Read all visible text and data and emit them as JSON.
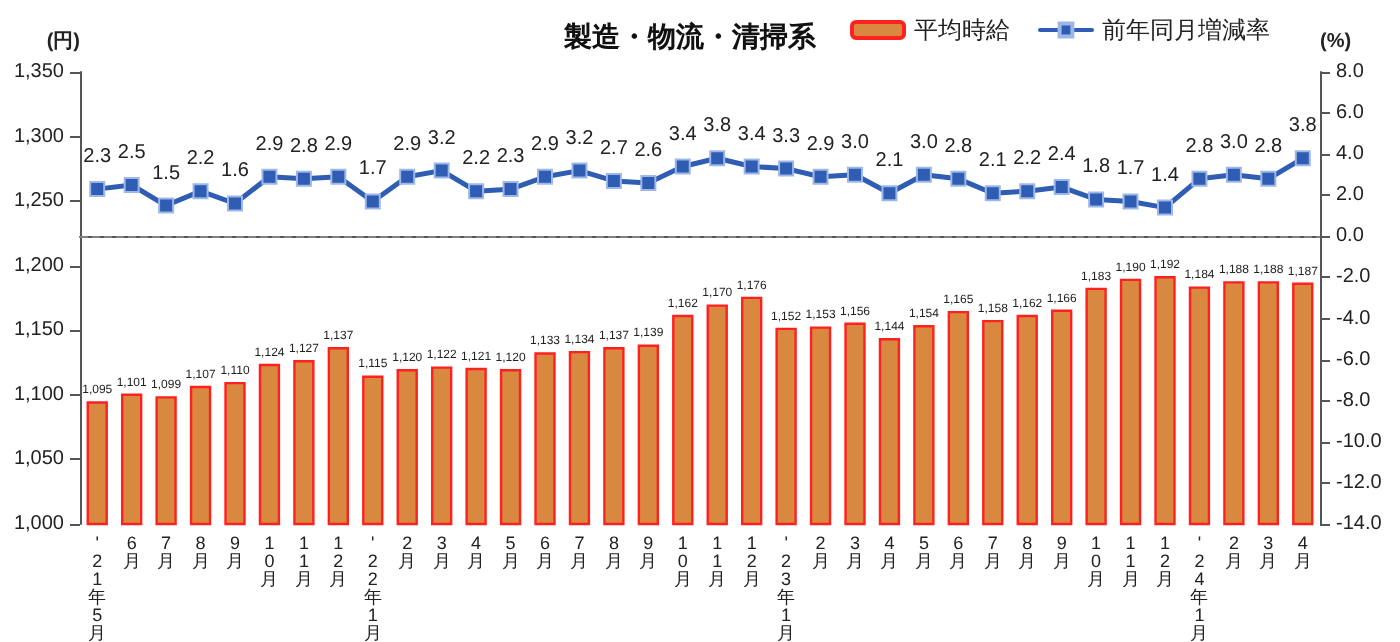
{
  "chart_data": {
    "type": "bar",
    "title": "製造・物流・清掃系",
    "ylabel": "(円)",
    "y2label": "(%)",
    "categories": [
      "'21年5月",
      "6月",
      "7月",
      "8月",
      "9月",
      "10月",
      "11月",
      "12月",
      "'22年1月",
      "2月",
      "3月",
      "4月",
      "5月",
      "6月",
      "7月",
      "8月",
      "9月",
      "10月",
      "11月",
      "12月",
      "'23年1月",
      "2月",
      "3月",
      "4月",
      "5月",
      "6月",
      "7月",
      "8月",
      "9月",
      "10月",
      "11月",
      "12月",
      "'24年1月",
      "2月",
      "3月",
      "4月"
    ],
    "series": [
      {
        "name": "平均時給",
        "color": "#d9883f",
        "values": [
          1095,
          1101,
          1099,
          1107,
          1110,
          1124,
          1127,
          1137,
          1115,
          1120,
          1122,
          1121,
          1120,
          1133,
          1134,
          1137,
          1139,
          1162,
          1170,
          1176,
          1152,
          1153,
          1156,
          1144,
          1154,
          1165,
          1158,
          1162,
          1166,
          1183,
          1190,
          1192,
          1184,
          1188,
          1188,
          1187
        ],
        "value_labels": [
          "1,095",
          "1,101",
          "1,099",
          "1,107",
          "1,110",
          "1,124",
          "1,127",
          "1,137",
          "1,115",
          "1,120",
          "1,122",
          "1,121",
          "1,120",
          "1,133",
          "1,134",
          "1,137",
          "1,139",
          "1,162",
          "1,170",
          "1,176",
          "1,152",
          "1,153",
          "1,156",
          "1,144",
          "1,154",
          "1,165",
          "1,158",
          "1,162",
          "1,166",
          "1,183",
          "1,190",
          "1,192",
          "1,184",
          "1,188",
          "1,188",
          "1,187"
        ]
      },
      {
        "name": "前年同月増減率",
        "type": "line",
        "axis": "y2",
        "color": "#2e5db3",
        "marker": "square",
        "values": [
          2.3,
          2.5,
          1.5,
          2.2,
          1.6,
          2.9,
          2.8,
          2.9,
          1.7,
          2.9,
          3.2,
          2.2,
          2.3,
          2.9,
          3.2,
          2.7,
          2.6,
          3.4,
          3.8,
          3.4,
          3.3,
          2.9,
          3.0,
          2.1,
          3.0,
          2.8,
          2.1,
          2.2,
          2.4,
          1.8,
          1.7,
          1.4,
          2.8,
          3.0,
          2.8,
          3.8
        ],
        "value_labels": [
          "2.3",
          "2.5",
          "1.5",
          "2.2",
          "1.6",
          "2.9",
          "2.8",
          "2.9",
          "1.7",
          "2.9",
          "3.2",
          "2.2",
          "2.3",
          "2.9",
          "3.2",
          "2.7",
          "2.6",
          "3.4",
          "3.8",
          "3.4",
          "3.3",
          "2.9",
          "3.0",
          "2.1",
          "3.0",
          "2.8",
          "2.1",
          "2.2",
          "2.4",
          "1.8",
          "1.7",
          "1.4",
          "2.8",
          "3.0",
          "2.8",
          "3.8"
        ]
      }
    ],
    "ylim": [
      1000,
      1350
    ],
    "yticks": [
      {
        "value": 1000,
        "label": "1,000"
      },
      {
        "value": 1050,
        "label": "1,050"
      },
      {
        "value": 1100,
        "label": "1,100"
      },
      {
        "value": 1150,
        "label": "1,150"
      },
      {
        "value": 1200,
        "label": "1,200"
      },
      {
        "value": 1250,
        "label": "1,250"
      },
      {
        "value": 1300,
        "label": "1,300"
      },
      {
        "value": 1350,
        "label": "1,350"
      }
    ],
    "y2lim": [
      -14,
      8
    ],
    "y2ticks": [
      {
        "value": -14,
        "label": "-14.0"
      },
      {
        "value": -12,
        "label": "-12.0"
      },
      {
        "value": -10,
        "label": "-10.0"
      },
      {
        "value": -8,
        "label": "-8.0"
      },
      {
        "value": -6,
        "label": "-6.0"
      },
      {
        "value": -4,
        "label": "-4.0"
      },
      {
        "value": -2,
        "label": "-2.0"
      },
      {
        "value": 0,
        "label": "0.0"
      },
      {
        "value": 2,
        "label": "2.0"
      },
      {
        "value": 4,
        "label": "4.0"
      },
      {
        "value": 6,
        "label": "6.0"
      },
      {
        "value": 8,
        "label": "8.0"
      }
    ],
    "ref_lines": [
      {
        "axis": "y2",
        "value": 0,
        "color": "#808080",
        "line_style": "dashed"
      }
    ],
    "legend": "top right",
    "grid": false
  }
}
